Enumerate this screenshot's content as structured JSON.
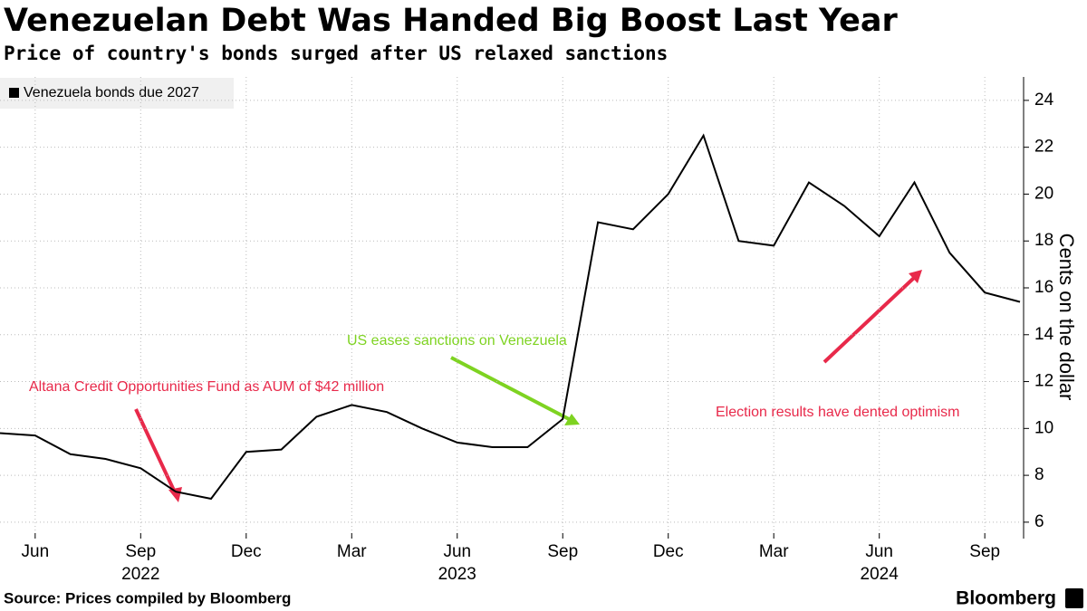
{
  "chart_data": {
    "type": "line",
    "title": "Venezuelan Debt Was Handed Big Boost Last Year",
    "subtitle": "Price of country's bonds surged after US relaxed sanctions",
    "y_label": "Cents on the dollar",
    "source": "Source: Prices compiled by Bloomberg",
    "brand": "Bloomberg",
    "x": [
      "2022-05",
      "2022-06",
      "2022-07",
      "2022-08",
      "2022-09",
      "2022-10",
      "2022-11",
      "2022-12",
      "2023-01",
      "2023-02",
      "2023-03",
      "2023-04",
      "2023-05",
      "2023-06",
      "2023-07",
      "2023-08",
      "2023-09",
      "2023-10",
      "2023-11",
      "2023-12",
      "2024-01",
      "2024-02",
      "2024-03",
      "2024-04",
      "2024-05",
      "2024-06",
      "2024-07",
      "2024-08",
      "2024-09",
      "2024-10"
    ],
    "series": [
      {
        "name": "Venezuela bonds due 2027",
        "color": "#000000",
        "values": [
          9.8,
          9.7,
          8.9,
          8.7,
          8.3,
          7.3,
          7.0,
          9.0,
          9.1,
          10.5,
          11.0,
          10.7,
          10.0,
          9.4,
          9.2,
          9.2,
          10.4,
          18.8,
          18.5,
          20.0,
          22.5,
          18.0,
          17.8,
          20.5,
          19.5,
          18.2,
          20.5,
          17.5,
          15.8,
          15.4
        ]
      }
    ],
    "xlim": [
      "2022-05",
      "2024-10"
    ],
    "xticks": [
      {
        "value": "2022-06",
        "label": "Jun"
      },
      {
        "value": "2022-09",
        "label": "Sep"
      },
      {
        "value": "2022-12",
        "label": "Dec"
      },
      {
        "value": "2023-03",
        "label": "Mar"
      },
      {
        "value": "2023-06",
        "label": "Jun"
      },
      {
        "value": "2023-09",
        "label": "Sep"
      },
      {
        "value": "2023-12",
        "label": "Dec"
      },
      {
        "value": "2024-03",
        "label": "Mar"
      },
      {
        "value": "2024-06",
        "label": "Jun"
      },
      {
        "value": "2024-09",
        "label": "Sep"
      }
    ],
    "year_labels": [
      {
        "value": "2022-09",
        "label": "2022"
      },
      {
        "value": "2023-06",
        "label": "2023"
      },
      {
        "value": "2024-06",
        "label": "2024"
      }
    ],
    "ylim": [
      5.3,
      25
    ],
    "yticks": [
      6,
      8,
      10,
      12,
      14,
      16,
      18,
      20,
      22,
      24
    ],
    "grid": true,
    "annotations": [
      {
        "text": "Altana Credit Opportunities Fund as AUM of $42 million",
        "color": "#e8294a"
      },
      {
        "text": "US eases sanctions on Venezuela",
        "color": "#7ed321"
      },
      {
        "text": "Election results have dented optimism",
        "color": "#e8294a"
      }
    ]
  }
}
